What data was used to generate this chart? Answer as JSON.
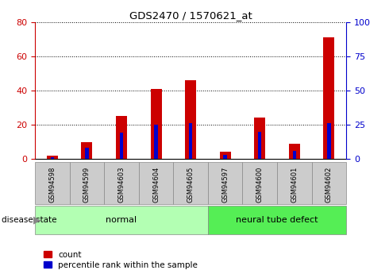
{
  "title": "GDS2470 / 1570621_at",
  "samples": [
    "GSM94598",
    "GSM94599",
    "GSM94603",
    "GSM94604",
    "GSM94605",
    "GSM94597",
    "GSM94600",
    "GSM94601",
    "GSM94602"
  ],
  "count_values": [
    2,
    10,
    25,
    41,
    46,
    4,
    24,
    9,
    71
  ],
  "percentile_values": [
    1.5,
    8,
    19,
    25,
    26,
    3,
    20,
    6,
    26
  ],
  "groups": [
    {
      "label": "normal",
      "indices": [
        0,
        1,
        2,
        3,
        4
      ],
      "color": "#b3ffb3"
    },
    {
      "label": "neural tube defect",
      "indices": [
        5,
        6,
        7,
        8
      ],
      "color": "#55ee55"
    }
  ],
  "disease_state_label": "disease state",
  "left_axis_color": "#cc0000",
  "right_axis_color": "#0000cc",
  "left_ylim": [
    0,
    80
  ],
  "right_ylim": [
    0,
    100
  ],
  "left_yticks": [
    0,
    20,
    40,
    60,
    80
  ],
  "right_yticks": [
    0,
    25,
    50,
    75,
    100
  ],
  "bar_color": "#cc0000",
  "marker_color": "#0000cc",
  "bg_color": "#ffffff",
  "plot_bg_color": "#ffffff",
  "grid_color": "#000000",
  "tick_label_bg": "#cccccc",
  "legend_count_color": "#cc0000",
  "legend_percentile_color": "#0000cc",
  "legend_count_label": "count",
  "legend_percentile_label": "percentile rank within the sample"
}
